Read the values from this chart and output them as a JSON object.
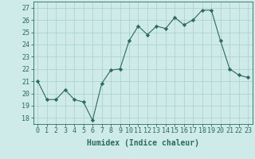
{
  "x": [
    0,
    1,
    2,
    3,
    4,
    5,
    6,
    7,
    8,
    9,
    10,
    11,
    12,
    13,
    14,
    15,
    16,
    17,
    18,
    19,
    20,
    21,
    22,
    23
  ],
  "y": [
    21.0,
    19.5,
    19.5,
    20.3,
    19.5,
    19.3,
    17.8,
    20.8,
    21.9,
    22.0,
    24.3,
    25.5,
    24.8,
    25.5,
    25.3,
    26.2,
    25.6,
    26.0,
    26.8,
    26.8,
    24.3,
    22.0,
    21.5,
    21.3
  ],
  "line_color": "#2d6b5e",
  "marker": "D",
  "marker_size": 2.2,
  "bg_color": "#ceeae9",
  "grid_color": "#afd4d2",
  "xlabel": "Humidex (Indice chaleur)",
  "ylim": [
    17.5,
    27.5
  ],
  "xlim": [
    -0.5,
    23.5
  ],
  "yticks": [
    18,
    19,
    20,
    21,
    22,
    23,
    24,
    25,
    26,
    27
  ],
  "xticks": [
    0,
    1,
    2,
    3,
    4,
    5,
    6,
    7,
    8,
    9,
    10,
    11,
    12,
    13,
    14,
    15,
    16,
    17,
    18,
    19,
    20,
    21,
    22,
    23
  ],
  "tick_color": "#2d6b5e",
  "label_fontsize": 7,
  "tick_fontsize": 6
}
